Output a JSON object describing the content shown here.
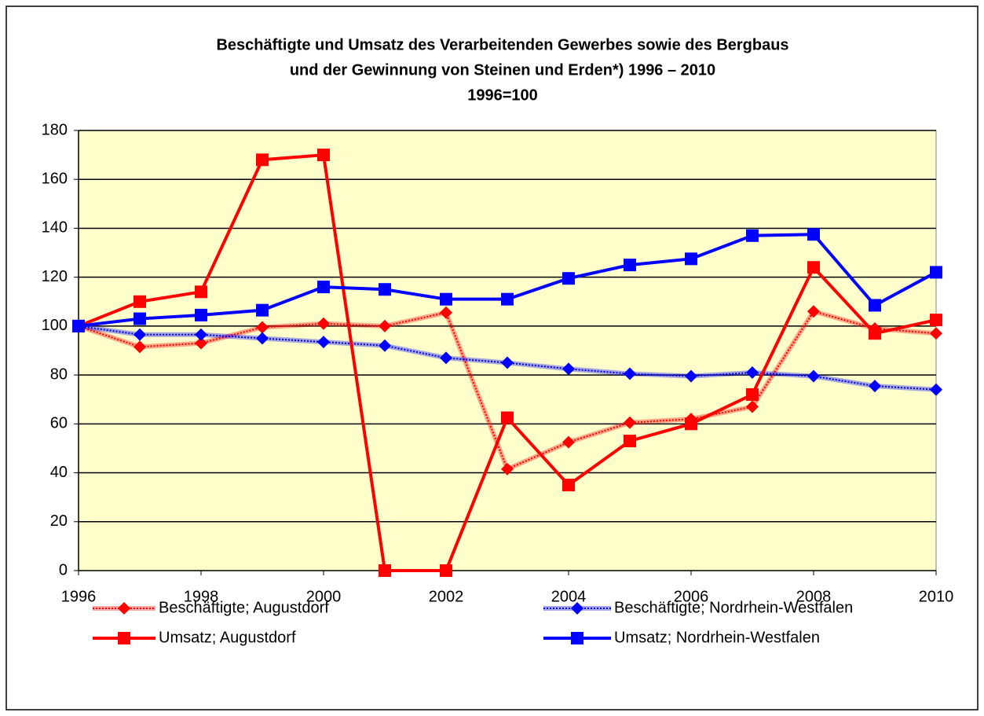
{
  "chart_data": {
    "type": "line",
    "title": [
      "Beschäftigte und Umsatz des Verarbeitenden Gewerbes sowie des Bergbaus",
      "und der Gewinnung von Steinen und Erden*) 1996 – 2010",
      "1996=100"
    ],
    "x": [
      1996,
      1997,
      1998,
      1999,
      2000,
      2001,
      2002,
      2003,
      2004,
      2005,
      2006,
      2007,
      2008,
      2009,
      2010
    ],
    "xlim": [
      1996,
      2010
    ],
    "xticks": [
      1996,
      1998,
      2000,
      2002,
      2004,
      2006,
      2008,
      2010
    ],
    "ylim": [
      0,
      180
    ],
    "yticks": [
      0,
      20,
      40,
      60,
      80,
      100,
      120,
      140,
      160,
      180
    ],
    "grid": true,
    "plot_background": "#ffffcc",
    "series": [
      {
        "name": "Beschäftigte; Augustdorf",
        "color": "#ff0000",
        "marker": "diamond",
        "hatched": true,
        "values": [
          100,
          91.5,
          93,
          99.5,
          101,
          100,
          105.5,
          41.5,
          52.5,
          60.5,
          62,
          67,
          106,
          99,
          97
        ]
      },
      {
        "name": "Beschäftigte; Nordrhein-Westfalen",
        "color": "#0000ff",
        "marker": "diamond",
        "hatched": true,
        "values": [
          100,
          96.5,
          96.5,
          95,
          93.5,
          92,
          87,
          85,
          82.5,
          80.5,
          79.5,
          81,
          79.5,
          75.5,
          74
        ]
      },
      {
        "name": "Umsatz; Augustdorf",
        "color": "#ff0000",
        "marker": "square",
        "hatched": false,
        "values": [
          100,
          110,
          114,
          168,
          170,
          0,
          0,
          62.5,
          35,
          53,
          60,
          72,
          124,
          97,
          102.5
        ]
      },
      {
        "name": "Umsatz; Nordrhein-Westfalen",
        "color": "#0000ff",
        "marker": "square",
        "hatched": false,
        "values": [
          100,
          103,
          104.5,
          106.5,
          116,
          115,
          111,
          111,
          119.5,
          125,
          127.5,
          137,
          137.5,
          108.5,
          122
        ]
      }
    ]
  }
}
